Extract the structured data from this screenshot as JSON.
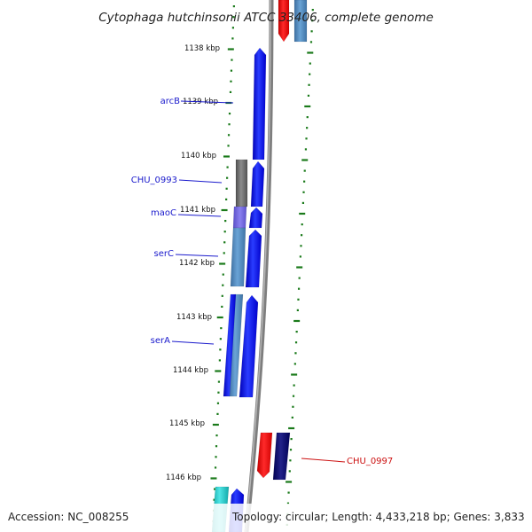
{
  "title": "Cytophaga hutchinsonii ATCC 33406, complete genome",
  "footer": {
    "accession": "Accession: NC_008255",
    "topology": "Topology: circular; Length: 4,433,218 bp; Genes: 3,833"
  },
  "colors": {
    "forward_gene": "#0a14f0",
    "reverse_gene": "#ee1111",
    "reverse_dark": "#0a0a6e",
    "steelblue_gene": "#4f87bd",
    "gray_gene": "#6a6a6a",
    "cyan_gene": "#1fc7c7",
    "tick": "#1a7a1a",
    "blue_label": "#1a1acc",
    "red_label": "#cc1111",
    "backbone": "#8a8a8a"
  },
  "kbp_labels": [
    "1138 kbp",
    "1139 kbp",
    "1140 kbp",
    "1141 kbp",
    "1142 kbp",
    "1143 kbp",
    "1144 kbp",
    "1145 kbp",
    "1146 kbp"
  ],
  "gene_labels": [
    "arcB",
    "CHU_0993",
    "maoC",
    "serC",
    "serA",
    "CHU_0997"
  ]
}
